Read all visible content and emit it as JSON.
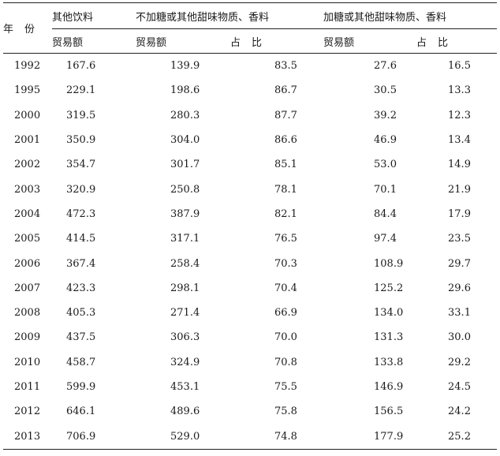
{
  "header": {
    "year_label": "年份",
    "group_other": "其他饮料",
    "group_unsweetened": "不加糖或其他甜味物质、香料",
    "group_sweetened": "加糖或其他甜味物质、香料",
    "col_trade_amount": "贸易额",
    "col_share": "占比"
  },
  "rows": [
    {
      "year": "1992",
      "other": "167.6",
      "unsweetened_amount": "139.9",
      "unsweetened_share": "83.5",
      "sweetened_amount": "27.6",
      "sweetened_share": "16.5"
    },
    {
      "year": "1995",
      "other": "229.1",
      "unsweetened_amount": "198.6",
      "unsweetened_share": "86.7",
      "sweetened_amount": "30.5",
      "sweetened_share": "13.3"
    },
    {
      "year": "2000",
      "other": "319.5",
      "unsweetened_amount": "280.3",
      "unsweetened_share": "87.7",
      "sweetened_amount": "39.2",
      "sweetened_share": "12.3"
    },
    {
      "year": "2001",
      "other": "350.9",
      "unsweetened_amount": "304.0",
      "unsweetened_share": "86.6",
      "sweetened_amount": "46.9",
      "sweetened_share": "13.4"
    },
    {
      "year": "2002",
      "other": "354.7",
      "unsweetened_amount": "301.7",
      "unsweetened_share": "85.1",
      "sweetened_amount": "53.0",
      "sweetened_share": "14.9"
    },
    {
      "year": "2003",
      "other": "320.9",
      "unsweetened_amount": "250.8",
      "unsweetened_share": "78.1",
      "sweetened_amount": "70.1",
      "sweetened_share": "21.9"
    },
    {
      "year": "2004",
      "other": "472.3",
      "unsweetened_amount": "387.9",
      "unsweetened_share": "82.1",
      "sweetened_amount": "84.4",
      "sweetened_share": "17.9"
    },
    {
      "year": "2005",
      "other": "414.5",
      "unsweetened_amount": "317.1",
      "unsweetened_share": "76.5",
      "sweetened_amount": "97.4",
      "sweetened_share": "23.5"
    },
    {
      "year": "2006",
      "other": "367.4",
      "unsweetened_amount": "258.4",
      "unsweetened_share": "70.3",
      "sweetened_amount": "108.9",
      "sweetened_share": "29.7"
    },
    {
      "year": "2007",
      "other": "423.3",
      "unsweetened_amount": "298.1",
      "unsweetened_share": "70.4",
      "sweetened_amount": "125.2",
      "sweetened_share": "29.6"
    },
    {
      "year": "2008",
      "other": "405.3",
      "unsweetened_amount": "271.4",
      "unsweetened_share": "66.9",
      "sweetened_amount": "134.0",
      "sweetened_share": "33.1"
    },
    {
      "year": "2009",
      "other": "437.5",
      "unsweetened_amount": "306.3",
      "unsweetened_share": "70.0",
      "sweetened_amount": "131.3",
      "sweetened_share": "30.0"
    },
    {
      "year": "2010",
      "other": "458.7",
      "unsweetened_amount": "324.9",
      "unsweetened_share": "70.8",
      "sweetened_amount": "133.8",
      "sweetened_share": "29.2"
    },
    {
      "year": "2011",
      "other": "599.9",
      "unsweetened_amount": "453.1",
      "unsweetened_share": "75.5",
      "sweetened_amount": "146.9",
      "sweetened_share": "24.5"
    },
    {
      "year": "2012",
      "other": "646.1",
      "unsweetened_amount": "489.6",
      "unsweetened_share": "75.8",
      "sweetened_amount": "156.5",
      "sweetened_share": "24.2"
    },
    {
      "year": "2013",
      "other": "706.9",
      "unsweetened_amount": "529.0",
      "unsweetened_share": "74.8",
      "sweetened_amount": "177.9",
      "sweetened_share": "25.2"
    }
  ]
}
